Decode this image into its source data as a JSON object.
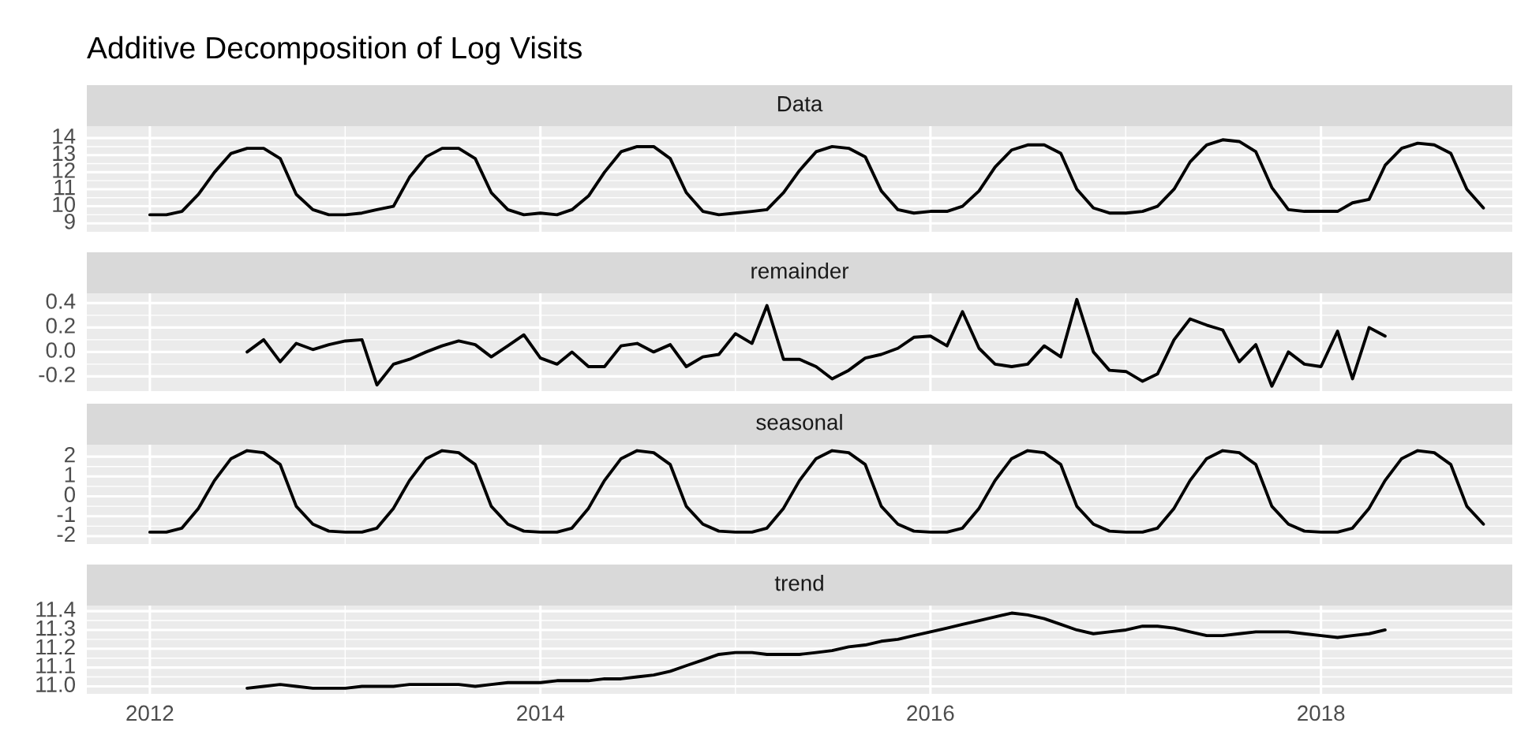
{
  "chart_data": [
    {
      "type": "line",
      "title": "Additive Decomposition of Log Visits",
      "subtitle": "Data",
      "tick_labels": "y",
      "grid": true,
      "x": [
        "2012-01",
        "2012-02",
        "2012-03",
        "2012-04",
        "2012-05",
        "2012-06",
        "2012-07",
        "2012-08",
        "2012-09",
        "2012-10",
        "2012-11",
        "2012-12",
        "2013-01",
        "2013-02",
        "2013-03",
        "2013-04",
        "2013-05",
        "2013-06",
        "2013-07",
        "2013-08",
        "2013-09",
        "2013-10",
        "2013-11",
        "2013-12",
        "2014-01",
        "2014-02",
        "2014-03",
        "2014-04",
        "2014-05",
        "2014-06",
        "2014-07",
        "2014-08",
        "2014-09",
        "2014-10",
        "2014-11",
        "2014-12",
        "2015-01",
        "2015-02",
        "2015-03",
        "2015-04",
        "2015-05",
        "2015-06",
        "2015-07",
        "2015-08",
        "2015-09",
        "2015-10",
        "2015-11",
        "2015-12",
        "2016-01",
        "2016-02",
        "2016-03",
        "2016-04",
        "2016-05",
        "2016-06",
        "2016-07",
        "2016-08",
        "2016-09",
        "2016-10",
        "2016-11",
        "2016-12",
        "2017-01",
        "2017-02",
        "2017-03",
        "2017-04",
        "2017-05",
        "2017-06",
        "2017-07",
        "2017-08",
        "2017-09",
        "2017-10",
        "2017-11",
        "2017-12",
        "2018-01",
        "2018-02",
        "2018-03",
        "2018-04",
        "2018-05",
        "2018-06",
        "2018-07",
        "2018-08",
        "2018-09",
        "2018-10",
        "2018-11"
      ],
      "series": [
        {
          "color": "#000000",
          "values": [
            9.5,
            9.5,
            9.7,
            10.7,
            12.0,
            13.1,
            13.4,
            13.4,
            12.8,
            10.7,
            9.8,
            9.5,
            9.5,
            9.6,
            9.8,
            10.0,
            11.7,
            12.9,
            13.4,
            13.4,
            12.8,
            10.8,
            9.8,
            9.5,
            9.6,
            9.5,
            9.8,
            10.6,
            12.0,
            13.2,
            13.5,
            13.5,
            12.8,
            10.8,
            9.7,
            9.5,
            9.6,
            9.7,
            9.8,
            10.8,
            12.1,
            13.2,
            13.5,
            13.4,
            12.9,
            10.9,
            9.8,
            9.6,
            9.7,
            9.7,
            10.0,
            10.9,
            12.3,
            13.3,
            13.6,
            13.6,
            13.1,
            11.0,
            9.9,
            9.6,
            9.6,
            9.7,
            10.0,
            11.0,
            12.6,
            13.6,
            13.9,
            13.8,
            13.2,
            11.1,
            9.8,
            9.7,
            9.7,
            9.7,
            10.2,
            10.4,
            12.4,
            13.4,
            13.7,
            13.6,
            13.1,
            11.0,
            9.9
          ]
        }
      ],
      "xlim": [
        "2011-09-05",
        "2018-12-25"
      ],
      "xticks": [
        {
          "value": "2012",
          "label": null
        },
        {
          "value": "2014",
          "label": null
        },
        {
          "value": "2016",
          "label": null
        },
        {
          "value": "2018",
          "label": null
        }
      ],
      "ylim": [
        8.5,
        14.7
      ],
      "yticks": [
        9,
        10,
        11,
        12,
        13,
        14
      ]
    },
    {
      "type": "line",
      "subtitle": "remainder",
      "tick_labels": "y",
      "grid": true,
      "x": [
        "2012-07",
        "2012-08",
        "2012-09",
        "2012-10",
        "2012-11",
        "2012-12",
        "2013-01",
        "2013-02",
        "2013-03",
        "2013-04",
        "2013-05",
        "2013-06",
        "2013-07",
        "2013-08",
        "2013-09",
        "2013-10",
        "2013-11",
        "2013-12",
        "2014-01",
        "2014-02",
        "2014-03",
        "2014-04",
        "2014-05",
        "2014-06",
        "2014-07",
        "2014-08",
        "2014-09",
        "2014-10",
        "2014-11",
        "2014-12",
        "2015-01",
        "2015-02",
        "2015-03",
        "2015-04",
        "2015-05",
        "2015-06",
        "2015-07",
        "2015-08",
        "2015-09",
        "2015-10",
        "2015-11",
        "2015-12",
        "2016-01",
        "2016-02",
        "2016-03",
        "2016-04",
        "2016-05",
        "2016-06",
        "2016-07",
        "2016-08",
        "2016-09",
        "2016-10",
        "2016-11",
        "2016-12",
        "2017-01",
        "2017-02",
        "2017-03",
        "2017-04",
        "2017-05",
        "2017-06",
        "2017-07",
        "2017-08",
        "2017-09",
        "2017-10",
        "2017-11",
        "2017-12",
        "2018-01",
        "2018-02",
        "2018-03",
        "2018-04",
        "2018-05"
      ],
      "series": [
        {
          "color": "#000000",
          "values": [
            0.0,
            0.1,
            -0.08,
            0.07,
            0.02,
            0.06,
            0.09,
            0.1,
            -0.27,
            -0.1,
            -0.06,
            0.0,
            0.05,
            0.09,
            0.06,
            -0.04,
            0.05,
            0.14,
            -0.05,
            -0.1,
            0.0,
            -0.12,
            -0.12,
            0.05,
            0.07,
            0.0,
            0.06,
            -0.12,
            -0.04,
            -0.02,
            0.15,
            0.07,
            0.38,
            -0.06,
            -0.06,
            -0.12,
            -0.22,
            -0.15,
            -0.05,
            -0.02,
            0.03,
            0.12,
            0.13,
            0.05,
            0.33,
            0.03,
            -0.1,
            -0.12,
            -0.1,
            0.05,
            -0.04,
            0.43,
            0.0,
            -0.15,
            -0.16,
            -0.24,
            -0.18,
            0.1,
            0.27,
            0.22,
            0.18,
            -0.08,
            0.06,
            -0.28,
            0.0,
            -0.1,
            -0.12,
            0.17,
            -0.22,
            0.2,
            0.13
          ]
        }
      ],
      "xlim": [
        "2011-09-05",
        "2018-12-25"
      ],
      "xticks": [
        {
          "value": "2012",
          "label": null
        },
        {
          "value": "2014",
          "label": null
        },
        {
          "value": "2016",
          "label": null
        },
        {
          "value": "2018",
          "label": null
        }
      ],
      "ylim": [
        -0.32,
        0.48
      ],
      "yticks": [
        {
          "value": -0.2,
          "label": "-0.2"
        },
        {
          "value": 0.0,
          "label": "0.0"
        },
        {
          "value": 0.2,
          "label": "0.2"
        },
        {
          "value": 0.4,
          "label": "0.4"
        }
      ]
    },
    {
      "type": "line",
      "subtitle": "seasonal",
      "tick_labels": "y",
      "grid": true,
      "x": [
        "2012-01",
        "2012-02",
        "2012-03",
        "2012-04",
        "2012-05",
        "2012-06",
        "2012-07",
        "2012-08",
        "2012-09",
        "2012-10",
        "2012-11",
        "2012-12",
        "2013-01",
        "2013-02",
        "2013-03",
        "2013-04",
        "2013-05",
        "2013-06",
        "2013-07",
        "2013-08",
        "2013-09",
        "2013-10",
        "2013-11",
        "2013-12",
        "2014-01",
        "2014-02",
        "2014-03",
        "2014-04",
        "2014-05",
        "2014-06",
        "2014-07",
        "2014-08",
        "2014-09",
        "2014-10",
        "2014-11",
        "2014-12",
        "2015-01",
        "2015-02",
        "2015-03",
        "2015-04",
        "2015-05",
        "2015-06",
        "2015-07",
        "2015-08",
        "2015-09",
        "2015-10",
        "2015-11",
        "2015-12",
        "2016-01",
        "2016-02",
        "2016-03",
        "2016-04",
        "2016-05",
        "2016-06",
        "2016-07",
        "2016-08",
        "2016-09",
        "2016-10",
        "2016-11",
        "2016-12",
        "2017-01",
        "2017-02",
        "2017-03",
        "2017-04",
        "2017-05",
        "2017-06",
        "2017-07",
        "2017-08",
        "2017-09",
        "2017-10",
        "2017-11",
        "2017-12",
        "2018-01",
        "2018-02",
        "2018-03",
        "2018-04",
        "2018-05",
        "2018-06",
        "2018-07",
        "2018-08",
        "2018-09",
        "2018-10",
        "2018-11"
      ],
      "series": [
        {
          "color": "#000000",
          "values": [
            -1.8,
            -1.8,
            -1.6,
            -0.6,
            0.8,
            1.9,
            2.3,
            2.2,
            1.6,
            -0.5,
            -1.4,
            -1.75,
            -1.8,
            -1.8,
            -1.6,
            -0.6,
            0.8,
            1.9,
            2.3,
            2.2,
            1.6,
            -0.5,
            -1.4,
            -1.75,
            -1.8,
            -1.8,
            -1.6,
            -0.6,
            0.8,
            1.9,
            2.3,
            2.2,
            1.6,
            -0.5,
            -1.4,
            -1.75,
            -1.8,
            -1.8,
            -1.6,
            -0.6,
            0.8,
            1.9,
            2.3,
            2.2,
            1.6,
            -0.5,
            -1.4,
            -1.75,
            -1.8,
            -1.8,
            -1.6,
            -0.6,
            0.8,
            1.9,
            2.3,
            2.2,
            1.6,
            -0.5,
            -1.4,
            -1.75,
            -1.8,
            -1.8,
            -1.6,
            -0.6,
            0.8,
            1.9,
            2.3,
            2.2,
            1.6,
            -0.5,
            -1.4,
            -1.75,
            -1.8,
            -1.8,
            -1.6,
            -0.6,
            0.8,
            1.9,
            2.3,
            2.2,
            1.6,
            -0.5,
            -1.4
          ]
        }
      ],
      "xlim": [
        "2011-09-05",
        "2018-12-25"
      ],
      "xticks": [
        {
          "value": "2012",
          "label": null
        },
        {
          "value": "2014",
          "label": null
        },
        {
          "value": "2016",
          "label": null
        },
        {
          "value": "2018",
          "label": null
        }
      ],
      "ylim": [
        -2.4,
        2.6
      ],
      "yticks": [
        -2,
        -1,
        0,
        1,
        2
      ]
    },
    {
      "type": "line",
      "subtitle": "trend",
      "grid": true,
      "x": [
        "2012-07",
        "2012-08",
        "2012-09",
        "2012-10",
        "2012-11",
        "2012-12",
        "2013-01",
        "2013-02",
        "2013-03",
        "2013-04",
        "2013-05",
        "2013-06",
        "2013-07",
        "2013-08",
        "2013-09",
        "2013-10",
        "2013-11",
        "2013-12",
        "2014-01",
        "2014-02",
        "2014-03",
        "2014-04",
        "2014-05",
        "2014-06",
        "2014-07",
        "2014-08",
        "2014-09",
        "2014-10",
        "2014-11",
        "2014-12",
        "2015-01",
        "2015-02",
        "2015-03",
        "2015-04",
        "2015-05",
        "2015-06",
        "2015-07",
        "2015-08",
        "2015-09",
        "2015-10",
        "2015-11",
        "2015-12",
        "2016-01",
        "2016-02",
        "2016-03",
        "2016-04",
        "2016-05",
        "2016-06",
        "2016-07",
        "2016-08",
        "2016-09",
        "2016-10",
        "2016-11",
        "2016-12",
        "2017-01",
        "2017-02",
        "2017-03",
        "2017-04",
        "2017-05",
        "2017-06",
        "2017-07",
        "2017-08",
        "2017-09",
        "2017-10",
        "2017-11",
        "2017-12",
        "2018-01",
        "2018-02",
        "2018-03",
        "2018-04",
        "2018-05"
      ],
      "series": [
        {
          "color": "#000000",
          "values": [
            10.99,
            11.0,
            11.01,
            11.0,
            10.99,
            10.99,
            10.99,
            11.0,
            11.0,
            11.0,
            11.01,
            11.01,
            11.01,
            11.01,
            11.0,
            11.01,
            11.02,
            11.02,
            11.02,
            11.03,
            11.03,
            11.03,
            11.04,
            11.04,
            11.05,
            11.06,
            11.08,
            11.11,
            11.14,
            11.17,
            11.18,
            11.18,
            11.17,
            11.17,
            11.17,
            11.18,
            11.19,
            11.21,
            11.22,
            11.24,
            11.25,
            11.27,
            11.29,
            11.31,
            11.33,
            11.35,
            11.37,
            11.39,
            11.38,
            11.36,
            11.33,
            11.3,
            11.28,
            11.29,
            11.3,
            11.32,
            11.32,
            11.31,
            11.29,
            11.27,
            11.27,
            11.28,
            11.29,
            11.29,
            11.29,
            11.28,
            11.27,
            11.26,
            11.27,
            11.28,
            11.3
          ]
        }
      ],
      "xlim": [
        "2011-09-05",
        "2018-12-25"
      ],
      "xticks": [
        {
          "value": "2012",
          "label": "2012"
        },
        {
          "value": "2014",
          "label": "2014"
        },
        {
          "value": "2016",
          "label": "2016"
        },
        {
          "value": "2018",
          "label": "2018"
        }
      ],
      "ylim": [
        10.96,
        11.43
      ],
      "yticks": [
        {
          "value": 11.0,
          "label": "11.0"
        },
        {
          "value": 11.1,
          "label": "11.1"
        },
        {
          "value": 11.2,
          "label": "11.2"
        },
        {
          "value": 11.3,
          "label": "11.3"
        },
        {
          "value": 11.4,
          "label": "11.4"
        }
      ]
    }
  ]
}
